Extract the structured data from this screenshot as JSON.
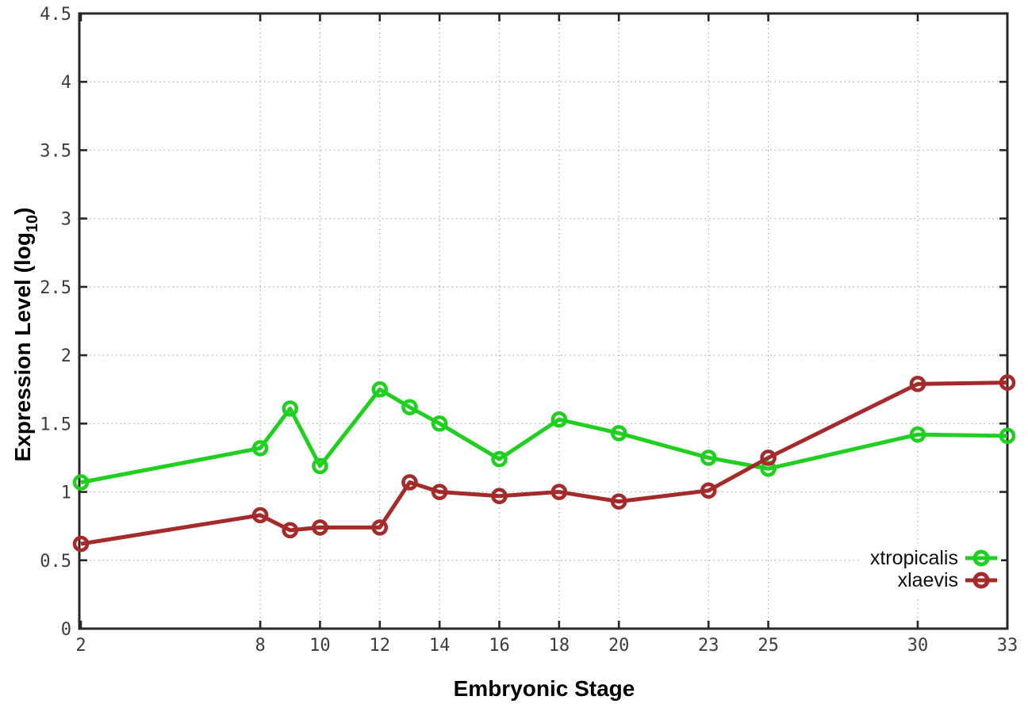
{
  "chart_data": {
    "type": "line",
    "title": "",
    "xlabel": "Embryonic Stage",
    "ylabel": {
      "prefix": "Expression Level (log",
      "sub": "10",
      "suffix": ")"
    },
    "xlim": [
      2,
      33
    ],
    "ylim": [
      0,
      4.5
    ],
    "grid": "dotted",
    "legend_position": "bottom-right",
    "x_ticks": [
      "2",
      "8",
      "10",
      "12",
      "14",
      "16",
      "18",
      "20",
      "23",
      "25",
      "30",
      "33"
    ],
    "x_tick_values": [
      2,
      8,
      10,
      12,
      14,
      16,
      18,
      20,
      23,
      25,
      30,
      33
    ],
    "y_ticks": [
      "0",
      "0.5",
      "1",
      "1.5",
      "2",
      "2.5",
      "3",
      "3.5",
      "4",
      "4.5"
    ],
    "y_tick_values": [
      0,
      0.5,
      1,
      1.5,
      2,
      2.5,
      3,
      3.5,
      4,
      4.5
    ],
    "x": [
      2,
      8,
      9,
      10,
      12,
      13,
      14,
      16,
      18,
      20,
      23,
      25,
      30,
      33
    ],
    "series": [
      {
        "name": "xtropicalis",
        "color": "#20d020",
        "values": [
          1.07,
          1.32,
          1.61,
          1.19,
          1.75,
          1.62,
          1.5,
          1.24,
          1.53,
          1.43,
          1.25,
          1.17,
          1.42,
          1.41
        ]
      },
      {
        "name": "xlaevis",
        "color": "#a52a2a",
        "values": [
          0.62,
          0.83,
          0.72,
          0.74,
          0.74,
          1.07,
          1.0,
          0.97,
          1.0,
          0.93,
          1.01,
          1.25,
          1.79,
          1.8
        ]
      }
    ],
    "axis_color": "#262626",
    "grid_color": "#ababab",
    "tick_label_color": "#3c3c3c",
    "marker": "open-circle"
  }
}
